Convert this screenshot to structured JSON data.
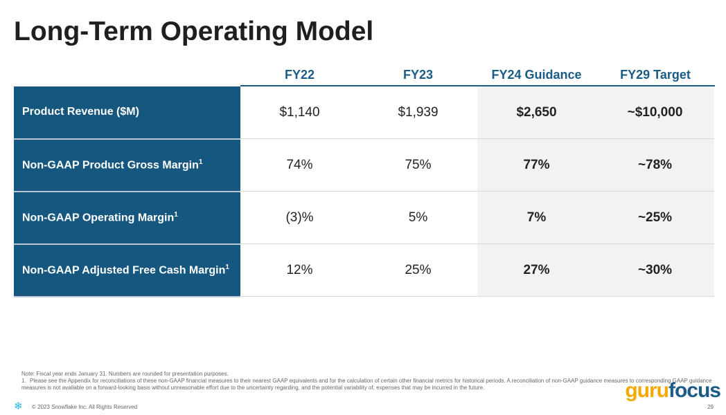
{
  "title": "Long-Term Operating Model",
  "columns": [
    "FY22",
    "FY23",
    "FY24 Guidance",
    "FY29 Target"
  ],
  "rows": [
    {
      "label": "Product Revenue ($M)",
      "sup": "",
      "values": [
        "$1,140",
        "$1,939",
        "$2,650",
        "~$10,000"
      ]
    },
    {
      "label": "Non-GAAP Product Gross Margin",
      "sup": "1",
      "values": [
        "74%",
        "75%",
        "77%",
        "~78%"
      ]
    },
    {
      "label": "Non-GAAP Operating Margin",
      "sup": "1",
      "values": [
        "(3)%",
        "5%",
        "7%",
        "~25%"
      ]
    },
    {
      "label": "Non-GAAP Adjusted Free Cash Margin",
      "sup": "1",
      "values": [
        "12%",
        "25%",
        "27%",
        "~30%"
      ]
    }
  ],
  "footer": {
    "note": "Note: Fiscal year ends January 31. Numbers are rounded for presentation purposes.",
    "footnote_num": "1.",
    "footnote": "Please see the Appendix for reconciliations of these non-GAAP financial measures to their nearest GAAP equivalents and for the calculation of certain other financial metrics for historical periods. A reconciliation of non-GAAP guidance measures to corresponding GAAP guidance measures is not available on a forward-looking basis without unreasonable effort due to the uncertainty regarding, and the potential variability of, expenses that may be incurred in the future.",
    "copyright": "© 2023 Snowflake Inc. All Rights Reserved",
    "page": "29"
  },
  "watermark": {
    "part1": "guru",
    "part2": "focus"
  }
}
